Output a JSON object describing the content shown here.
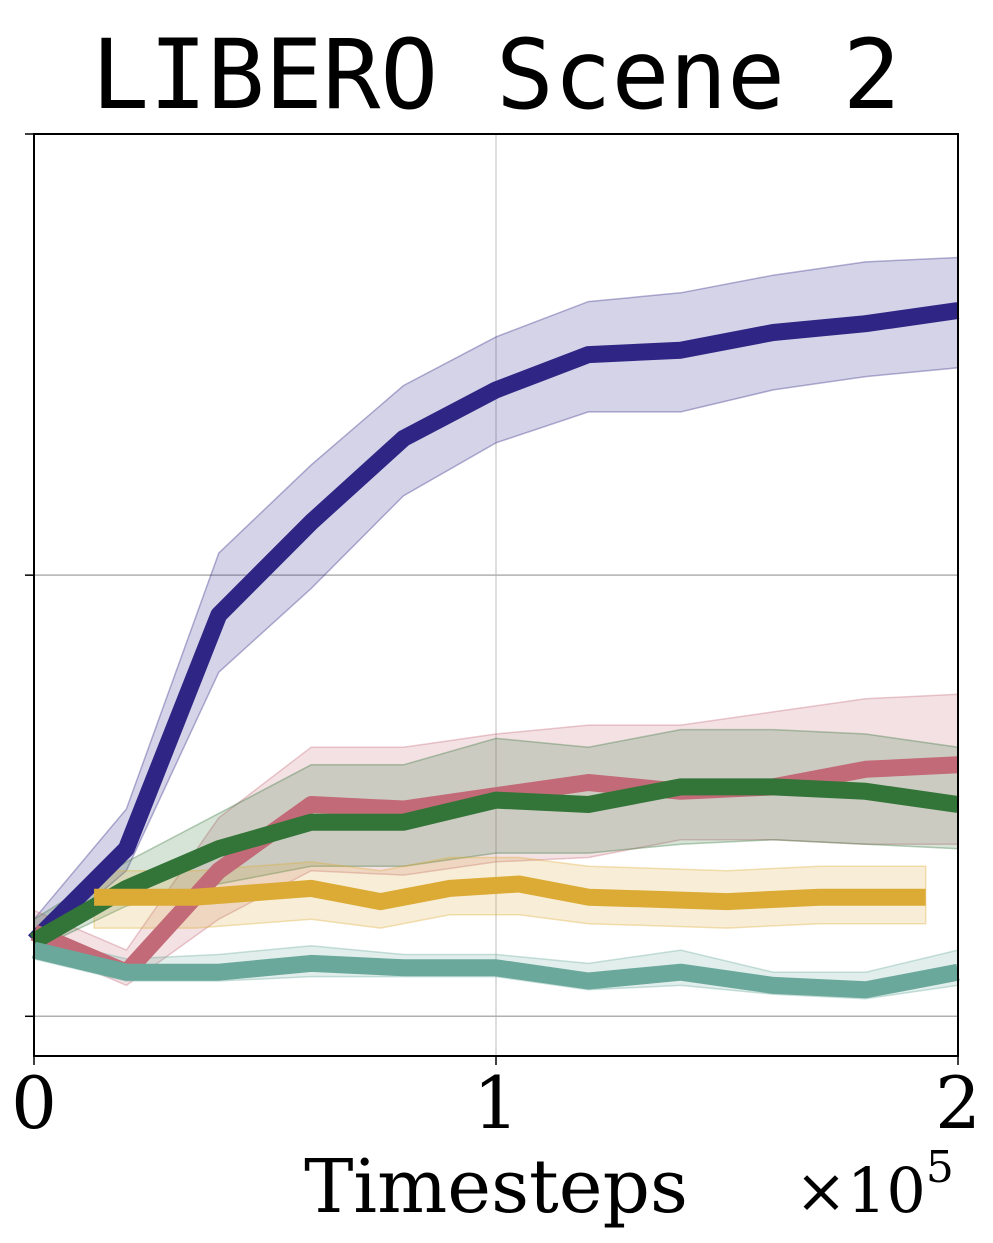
{
  "chart_data": {
    "type": "line",
    "title": "LIBERO Scene 2",
    "xlabel": "Timesteps",
    "x_multiplier": "×10",
    "x_multiplier_exponent": "5",
    "ylabel": "",
    "xlim": [
      0,
      2
    ],
    "ylim": [
      -0.09,
      2.0
    ],
    "x_ticks": [
      0,
      1,
      2
    ],
    "x_tick_labels": [
      "0",
      "1",
      "2"
    ],
    "y_ticks": [
      0,
      1,
      2
    ],
    "y_tick_labels": [
      "",
      "",
      ""
    ],
    "grid": true,
    "legend": "none",
    "series": [
      {
        "color": "#2e2585",
        "x": [
          0,
          0.2,
          0.4,
          0.6,
          0.8,
          1.0,
          1.2,
          1.4,
          1.6,
          1.8,
          2.0
        ],
        "values": [
          0.17,
          0.38,
          0.91,
          1.12,
          1.31,
          1.42,
          1.5,
          1.51,
          1.55,
          1.57,
          1.6
        ],
        "lower": [
          0.15,
          0.33,
          0.78,
          0.97,
          1.18,
          1.3,
          1.37,
          1.37,
          1.42,
          1.45,
          1.47
        ],
        "upper": [
          0.22,
          0.47,
          1.05,
          1.25,
          1.43,
          1.54,
          1.62,
          1.64,
          1.68,
          1.71,
          1.72
        ]
      },
      {
        "color": "#c26a77",
        "x": [
          0,
          0.2,
          0.4,
          0.6,
          0.8,
          1.0,
          1.2,
          1.4,
          1.6,
          1.8,
          2.0
        ],
        "values": [
          0.19,
          0.1,
          0.33,
          0.48,
          0.47,
          0.5,
          0.53,
          0.51,
          0.52,
          0.56,
          0.57
        ],
        "lower": [
          0.16,
          0.07,
          0.22,
          0.33,
          0.32,
          0.35,
          0.36,
          0.4,
          0.4,
          0.39,
          0.39
        ],
        "upper": [
          0.24,
          0.15,
          0.45,
          0.61,
          0.61,
          0.64,
          0.66,
          0.66,
          0.69,
          0.72,
          0.73
        ]
      },
      {
        "color": "#337538",
        "x": [
          0,
          0.2,
          0.4,
          0.6,
          0.8,
          1.0,
          1.2,
          1.4,
          1.6,
          1.8,
          2.0
        ],
        "values": [
          0.17,
          0.29,
          0.38,
          0.44,
          0.44,
          0.49,
          0.48,
          0.52,
          0.52,
          0.51,
          0.48
        ],
        "lower": [
          0.15,
          0.25,
          0.3,
          0.34,
          0.34,
          0.37,
          0.37,
          0.39,
          0.4,
          0.39,
          0.38
        ],
        "upper": [
          0.22,
          0.35,
          0.46,
          0.57,
          0.57,
          0.63,
          0.61,
          0.65,
          0.65,
          0.64,
          0.61
        ]
      },
      {
        "color": "#dcab35",
        "x": [
          0.13,
          0.35,
          0.6,
          0.75,
          0.9,
          1.05,
          1.2,
          1.5,
          1.7,
          1.93
        ],
        "values": [
          0.27,
          0.27,
          0.29,
          0.26,
          0.29,
          0.3,
          0.27,
          0.26,
          0.27,
          0.27
        ],
        "lower": [
          0.2,
          0.2,
          0.22,
          0.2,
          0.23,
          0.23,
          0.21,
          0.2,
          0.21,
          0.21
        ],
        "upper": [
          0.33,
          0.33,
          0.35,
          0.33,
          0.36,
          0.36,
          0.34,
          0.33,
          0.34,
          0.34
        ]
      },
      {
        "color": "#6aa89b",
        "x": [
          0,
          0.2,
          0.4,
          0.6,
          0.8,
          1.0,
          1.2,
          1.4,
          1.6,
          1.8,
          2.0
        ],
        "values": [
          0.15,
          0.1,
          0.1,
          0.12,
          0.11,
          0.11,
          0.08,
          0.1,
          0.07,
          0.06,
          0.1
        ],
        "lower": [
          0.13,
          0.08,
          0.08,
          0.09,
          0.09,
          0.09,
          0.06,
          0.07,
          0.05,
          0.04,
          0.07
        ],
        "upper": [
          0.18,
          0.13,
          0.14,
          0.16,
          0.14,
          0.14,
          0.12,
          0.15,
          0.1,
          0.1,
          0.15
        ]
      }
    ]
  }
}
